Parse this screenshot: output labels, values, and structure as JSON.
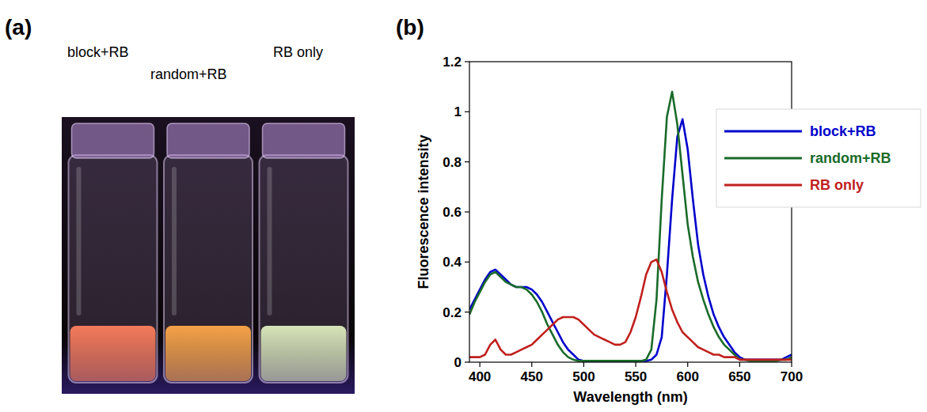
{
  "panel_labels": [
    "(a)",
    "(b)"
  ],
  "photo": {
    "vials": [
      {
        "label": "block+RB",
        "color": "#ff7f5e"
      },
      {
        "label": "random+RB",
        "color": "#ffa84a"
      },
      {
        "label": "RB only",
        "color": "#dfeec0"
      }
    ]
  },
  "chart_data": {
    "type": "line",
    "x_label": "Wavelength (nm)",
    "y_label": "Fluorescence intensity",
    "xlim": [
      390,
      700
    ],
    "ylim": [
      0,
      1.2
    ],
    "xticks": [
      400,
      450,
      500,
      550,
      600,
      650,
      700
    ],
    "yticks": [
      0,
      0.2,
      0.4,
      0.6,
      0.8,
      1,
      1.2
    ],
    "grid": false,
    "legend": "upper right",
    "x": [
      390,
      395,
      400,
      405,
      410,
      415,
      420,
      425,
      430,
      435,
      440,
      445,
      450,
      455,
      460,
      465,
      470,
      475,
      480,
      485,
      490,
      495,
      500,
      505,
      510,
      515,
      520,
      525,
      530,
      535,
      540,
      545,
      550,
      555,
      560,
      565,
      570,
      575,
      580,
      585,
      590,
      595,
      600,
      605,
      610,
      615,
      620,
      625,
      630,
      635,
      640,
      645,
      650,
      655,
      660,
      665,
      670,
      675,
      680,
      685,
      690,
      695,
      700
    ],
    "series": [
      {
        "name": "block+RB",
        "color": "#0000cc",
        "values": [
          0.21,
          0.25,
          0.29,
          0.33,
          0.36,
          0.37,
          0.35,
          0.33,
          0.31,
          0.3,
          0.3,
          0.3,
          0.29,
          0.27,
          0.24,
          0.2,
          0.16,
          0.12,
          0.08,
          0.05,
          0.03,
          0.01,
          0.005,
          0.005,
          0.005,
          0.005,
          0.005,
          0.005,
          0.005,
          0.005,
          0.005,
          0.005,
          0.005,
          0.005,
          0.005,
          0.01,
          0.03,
          0.1,
          0.35,
          0.65,
          0.9,
          0.97,
          0.85,
          0.65,
          0.47,
          0.35,
          0.26,
          0.19,
          0.14,
          0.1,
          0.07,
          0.04,
          0.02,
          0.01,
          0.01,
          0.01,
          0.01,
          0.01,
          0.01,
          0.01,
          0.01,
          0.02,
          0.03
        ]
      },
      {
        "name": "random+RB",
        "color": "#1a6b2a",
        "values": [
          0.19,
          0.24,
          0.28,
          0.32,
          0.35,
          0.36,
          0.34,
          0.32,
          0.31,
          0.3,
          0.3,
          0.29,
          0.27,
          0.24,
          0.2,
          0.15,
          0.11,
          0.07,
          0.04,
          0.02,
          0.01,
          0.005,
          0.005,
          0.005,
          0.005,
          0.005,
          0.005,
          0.005,
          0.005,
          0.005,
          0.005,
          0.005,
          0.005,
          0.005,
          0.01,
          0.05,
          0.25,
          0.65,
          0.98,
          1.08,
          0.95,
          0.75,
          0.55,
          0.42,
          0.32,
          0.25,
          0.19,
          0.14,
          0.1,
          0.07,
          0.05,
          0.03,
          0.01,
          0.01,
          0.005,
          0.005,
          0.005,
          0.005,
          0.005,
          0.005,
          0.01,
          0.01,
          0.02
        ]
      },
      {
        "name": "RB only",
        "color": "#c0201e",
        "values": [
          0.02,
          0.02,
          0.02,
          0.03,
          0.07,
          0.09,
          0.05,
          0.03,
          0.03,
          0.04,
          0.05,
          0.06,
          0.07,
          0.09,
          0.11,
          0.13,
          0.15,
          0.17,
          0.18,
          0.18,
          0.18,
          0.17,
          0.15,
          0.13,
          0.11,
          0.1,
          0.09,
          0.08,
          0.07,
          0.07,
          0.08,
          0.12,
          0.18,
          0.26,
          0.35,
          0.4,
          0.41,
          0.36,
          0.28,
          0.21,
          0.16,
          0.12,
          0.1,
          0.08,
          0.06,
          0.05,
          0.04,
          0.03,
          0.03,
          0.02,
          0.02,
          0.02,
          0.01,
          0.01,
          0.01,
          0.01,
          0.01,
          0.01,
          0.01,
          0.01,
          0.01,
          0.01,
          0.01
        ]
      }
    ]
  }
}
